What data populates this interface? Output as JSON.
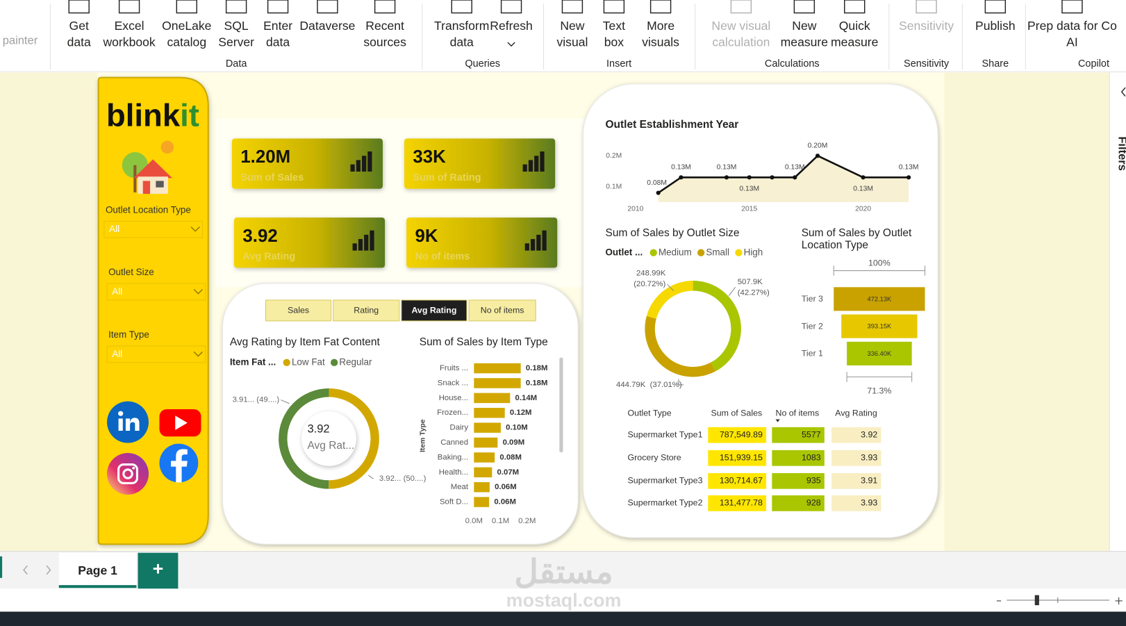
{
  "ribbon": {
    "left_cut": "painter",
    "groups": [
      {
        "label": "Data",
        "items": [
          [
            "Get",
            "data"
          ],
          [
            "Excel",
            "workbook"
          ],
          [
            "OneLake",
            "catalog"
          ],
          [
            "SQL",
            "Server"
          ],
          [
            "Enter",
            "data"
          ],
          [
            "Dataverse"
          ],
          [
            "Recent",
            "sources"
          ]
        ]
      },
      {
        "label": "Queries",
        "items": [
          [
            "Transform",
            "data"
          ],
          [
            "Refresh"
          ]
        ]
      },
      {
        "label": "Insert",
        "items": [
          [
            "New",
            "visual"
          ],
          [
            "Text",
            "box"
          ],
          [
            "More",
            "visuals"
          ]
        ]
      },
      {
        "label": "Calculations",
        "items": [
          [
            "New visual",
            "calculation"
          ],
          [
            "New",
            "measure"
          ],
          [
            "Quick",
            "measure"
          ]
        ]
      },
      {
        "label": "Sensitivity",
        "items": [
          [
            "Sensitivity"
          ]
        ]
      },
      {
        "label": "Share",
        "items": [
          [
            "Publish"
          ]
        ]
      },
      {
        "label": "Copilot",
        "items": [
          [
            "Prep data for Co",
            "AI"
          ]
        ]
      }
    ]
  },
  "sidebar": {
    "logo": [
      "blink",
      "it"
    ],
    "filters": [
      {
        "label": "Outlet Location Type",
        "value": "All"
      },
      {
        "label": "Outlet Size",
        "value": "All"
      },
      {
        "label": "Item Type",
        "value": "All"
      }
    ]
  },
  "kpis": [
    {
      "value": "1.20M",
      "label": "Sum of Sales"
    },
    {
      "value": "33K",
      "label": "Sum of Rating"
    },
    {
      "value": "3.92",
      "label": "Avg Rating"
    },
    {
      "value": "9K",
      "label": "No of items"
    }
  ],
  "tabs": {
    "items": [
      "Sales",
      "Rating",
      "Avg Rating",
      "No of items"
    ],
    "active": 2
  },
  "fat_donut": {
    "type": "donut",
    "title": "Avg Rating by Item Fat Content",
    "legend_title": "Item Fat ...",
    "series": [
      {
        "name": "Low Fat",
        "color": "#d2a800",
        "value": 3.92,
        "value_label": "3.92... (50....)"
      },
      {
        "name": "Regular",
        "color": "#5b8a3a",
        "value": 3.91,
        "value_label": "3.91... (49....)"
      }
    ],
    "center_value": "3.92",
    "center_label": "Avg Rat..."
  },
  "item_bar": {
    "type": "hbar",
    "title": "Sum of Sales by Item Type",
    "y_label": "Item Type",
    "categories": [
      "Fruits ...",
      "Snack ...",
      "House...",
      "Frozen...",
      "Dairy",
      "Canned",
      "Baking...",
      "Health...",
      "Meat",
      "Soft D..."
    ],
    "values": [
      0.176,
      0.176,
      0.136,
      0.116,
      0.101,
      0.089,
      0.078,
      0.068,
      0.059,
      0.057
    ],
    "value_labels": [
      "0.18M",
      "0.18M",
      "0.14M",
      "0.12M",
      "0.10M",
      "0.09M",
      "0.08M",
      "0.07M",
      "0.06M",
      "0.06M"
    ],
    "color": "#d2a800",
    "xlim": [
      0,
      0.25
    ],
    "xticks": [
      {
        "value": 0,
        "label": "0.0M"
      },
      {
        "value": 0.1,
        "label": "0.1M"
      },
      {
        "value": 0.2,
        "label": "0.2M"
      }
    ]
  },
  "year_line": {
    "type": "area",
    "title": "Outlet Establishment Year",
    "x": [
      2011,
      2012,
      2014,
      2015,
      2016,
      2017,
      2018,
      2020,
      2022
    ],
    "values": [
      0.08,
      0.13,
      0.13,
      0.13,
      0.13,
      0.13,
      0.2,
      0.13,
      0.13
    ],
    "value_labels": [
      "0.08M",
      "0.13M",
      "0.13M",
      "0.13M",
      null,
      "0.13M",
      "0.20M",
      "0.13M",
      "0.13M"
    ],
    "color": "#111111",
    "fill": "#f7f0d2",
    "xlim": [
      2010,
      2022.2
    ],
    "xticks": [
      2010,
      2015,
      2020
    ],
    "ylim": [
      0.05,
      0.22
    ],
    "yticks": [
      {
        "value": 0.1,
        "label": "0.1M"
      },
      {
        "value": 0.2,
        "label": "0.2M"
      }
    ]
  },
  "size_donut": {
    "type": "donut",
    "title": "Sum of Sales by Outlet Size",
    "legend_title": "Outlet ...",
    "series": [
      {
        "name": "Medium",
        "color": "#a9c600",
        "value": 507.9,
        "value_label": "507.9K",
        "percent_label": "(42.27%)"
      },
      {
        "name": "Small",
        "color": "#c9a200",
        "value": 444.79,
        "value_label": "444.79K",
        "percent_label": "(37.01%)"
      },
      {
        "name": "High",
        "color": "#f6d900",
        "value": 248.99,
        "value_label": "248.99K",
        "percent_label": "(20.72%)"
      }
    ]
  },
  "location_funnel": {
    "type": "funnel",
    "title": [
      "Sum of Sales by Outlet",
      "Location Type"
    ],
    "top_label": "100%",
    "bottom_label": "71.3%",
    "categories": [
      "Tier 3",
      "Tier 2",
      "Tier 1"
    ],
    "values": [
      472.13,
      393.15,
      336.4
    ],
    "value_labels": [
      "472.13K",
      "393.15K",
      "336.40K"
    ],
    "colors": [
      "#c9a200",
      "#e7c800",
      "#a9c600"
    ]
  },
  "outlet_table": {
    "columns": [
      "Outlet Type",
      "Sum of Sales",
      "No of items",
      "Avg Rating"
    ],
    "rows": [
      [
        "Supermarket Type1",
        "787,549.89",
        "5577",
        "3.92"
      ],
      [
        "Grocery Store",
        "151,939.15",
        "1083",
        "3.93"
      ],
      [
        "Supermarket Type3",
        "130,714.67",
        "935",
        "3.91"
      ],
      [
        "Supermarket Type2",
        "131,477.78",
        "928",
        "3.93"
      ]
    ],
    "cell_colors": [
      "#ffe600",
      "#a9c600",
      "#f8eec2"
    ]
  },
  "filters_pane": "Filters",
  "page_tabs": {
    "page": "Page 1",
    "add": "+"
  },
  "watermark": {
    "arabic": "مستقل",
    "latin": "mostaql.com"
  }
}
